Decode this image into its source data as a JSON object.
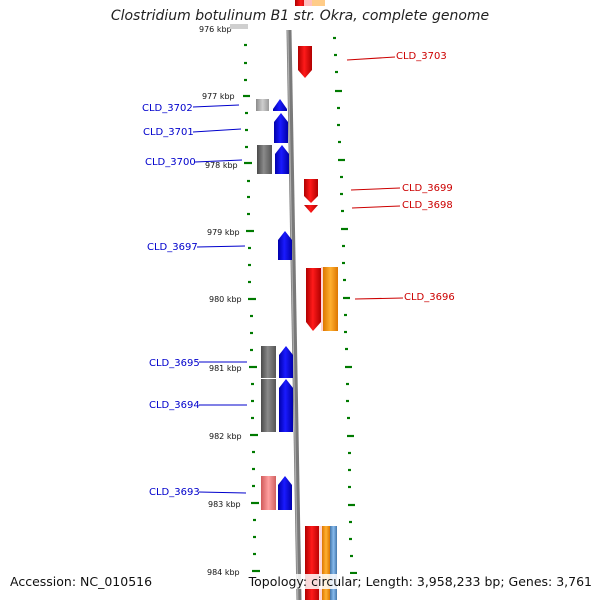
{
  "title": "Clostridium botulinum B1 str. Okra, complete genome",
  "accession": "Accession: NC_010516",
  "topology": "Topology: circular; Length: 3,958,233 bp; Genes: 3,761",
  "colors": {
    "forward_label": "#0000cc",
    "reverse_label": "#cc0000",
    "backbone": "#7a7a7a",
    "ticks": "#007a00",
    "forward_cds": "#0000ee",
    "reverse_cds": "#ee0000",
    "gray_box": "#707070",
    "orange_box": "#ff9900"
  },
  "scale_labels": [
    "976 kbp",
    "977 kbp",
    "978 kbp",
    "979 kbp",
    "980 kbp",
    "981 kbp",
    "982 kbp",
    "983 kbp",
    "984 kbp"
  ],
  "forward_genes": [
    "CLD_3702",
    "CLD_3701",
    "CLD_3700",
    "CLD_3697",
    "CLD_3695",
    "CLD_3694",
    "CLD_3693"
  ],
  "reverse_genes": [
    "CLD_3703",
    "CLD_3699",
    "CLD_3698",
    "CLD_3696"
  ]
}
